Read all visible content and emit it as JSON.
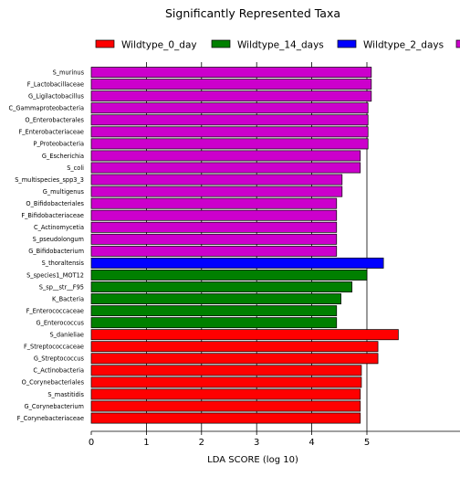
{
  "chart_data": {
    "type": "bar",
    "orientation": "horizontal",
    "title": "Significantly Represented Taxa",
    "xlabel": "LDA SCORE (log 10)",
    "ylabel": "",
    "xlim": [
      0,
      6.3
    ],
    "xticks": [
      0,
      1,
      2,
      3,
      4,
      5
    ],
    "grid": "vertical lines at ticks",
    "legend_placement": "top",
    "legend": [
      {
        "name": "Wildtype_0_day",
        "color": "#ff0000"
      },
      {
        "name": "Wildtype_14_days",
        "color": "#008000"
      },
      {
        "name": "Wildtype_2_days",
        "color": "#0000ff"
      },
      {
        "name": "",
        "color": "#cc00cc"
      }
    ],
    "categories": [
      "S_murinus",
      "F_Lactobacillaceae",
      "G_Ligilactobacillus",
      "C_Gammaproteobacteria",
      "O_Enterobacterales",
      "F_Enterobacteriaceae",
      "P_Proteobacteria",
      "G_Escherichia",
      "S_coli",
      "S_multispecies_spp3_3",
      "G_multigenus",
      "O_Bifidobacteriales",
      "F_Bifidobacteriaceae",
      "C_Actinomycetia",
      "S_pseudolongum",
      "G_Bifidobacterium",
      "S_thoraltensis",
      "S_species1_MOT12",
      "S_sp__str__F95",
      "K_Bacteria",
      "F_Enterococcaceae",
      "G_Enterococcus",
      "S_danieliae",
      "F_Streptococcaceae",
      "G_Streptococcus",
      "C_Actinobacteria",
      "O_Corynebacteriales",
      "S_mastitidis",
      "G_Corynebacterium",
      "F_Corynebacteriaceae"
    ],
    "values": [
      5.08,
      5.08,
      5.08,
      5.02,
      5.02,
      5.02,
      5.02,
      4.88,
      4.88,
      4.55,
      4.55,
      4.45,
      4.45,
      4.45,
      4.45,
      4.45,
      5.3,
      5.0,
      4.73,
      4.53,
      4.45,
      4.45,
      5.57,
      5.2,
      5.2,
      4.9,
      4.9,
      4.88,
      4.88,
      4.88
    ],
    "colors": [
      "#cc00cc",
      "#cc00cc",
      "#cc00cc",
      "#cc00cc",
      "#cc00cc",
      "#cc00cc",
      "#cc00cc",
      "#cc00cc",
      "#cc00cc",
      "#cc00cc",
      "#cc00cc",
      "#cc00cc",
      "#cc00cc",
      "#cc00cc",
      "#cc00cc",
      "#cc00cc",
      "#0000ff",
      "#008000",
      "#008000",
      "#008000",
      "#008000",
      "#008000",
      "#ff0000",
      "#ff0000",
      "#ff0000",
      "#ff0000",
      "#ff0000",
      "#ff0000",
      "#ff0000",
      "#ff0000"
    ]
  }
}
